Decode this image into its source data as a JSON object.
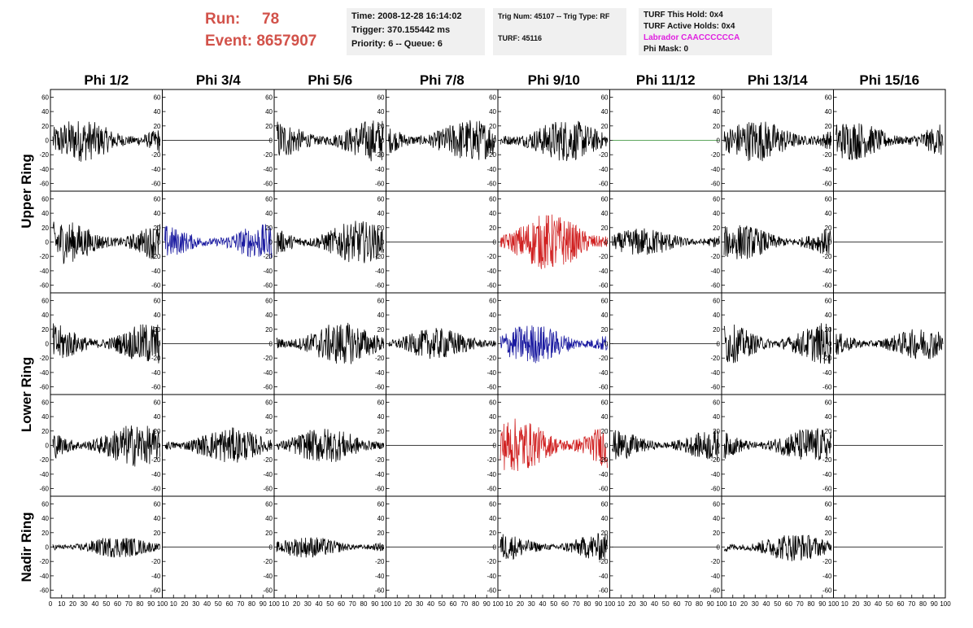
{
  "header": {
    "run_label": "Run:",
    "run_value": "78",
    "event_label": "Event:",
    "event_value": "8657907"
  },
  "info1": {
    "time": "Time: 2008-12-28 16:14:02",
    "trigger": "Trigger: 370.155442 ms",
    "priority": "Priority: 6 -- Queue: 6"
  },
  "info2": {
    "trig": "Trig Num: 45107 -- Trig Type: RF",
    "turf": "TURF: 45116"
  },
  "info3": {
    "this_hold": "TURF This Hold: 0x4",
    "active_holds": "TURF Active Holds: 0x4",
    "labrador": "Labrador CAACCCCCCA",
    "phi_mask": "Phi Mask: 0"
  },
  "colors": {
    "red": "#d2524a",
    "magenta": "#e020e0",
    "panel_bg": "#f0f0f0"
  },
  "chart_data": {
    "type": "line",
    "columns": [
      "Phi 1/2",
      "Phi 3/4",
      "Phi 5/6",
      "Phi 7/8",
      "Phi 9/10",
      "Phi 11/12",
      "Phi 13/14",
      "Phi 15/16"
    ],
    "row_groups": [
      {
        "label": "Upper Ring",
        "rows": [
          0,
          1
        ]
      },
      {
        "label": "Lower Ring",
        "rows": [
          2,
          3
        ]
      },
      {
        "label": "Nadir Ring",
        "rows": [
          4
        ]
      }
    ],
    "xlim": [
      0,
      100
    ],
    "ylim": [
      -65,
      65
    ],
    "xticks": [
      "0",
      "10",
      "20",
      "30",
      "40",
      "50",
      "60",
      "70",
      "80",
      "90",
      "100"
    ],
    "yticks": [
      "60",
      "40",
      "20",
      "0",
      "-20",
      "-40",
      "-60"
    ],
    "channels": [
      [
        "black:30",
        "flat:black",
        "black:30",
        "black:30",
        "black:30",
        "flat:green",
        "black:30",
        "black:28"
      ],
      [
        "black:30",
        "blue:25",
        "black:30",
        "flat:black",
        "red:40",
        "black:20",
        "black:25",
        "flat:black"
      ],
      [
        "black:30",
        "flat:black",
        "black:30",
        "black:22",
        "blue:28",
        "flat:black",
        "black:30",
        "black:22"
      ],
      [
        "black:30",
        "black:25",
        "black:25",
        "flat:black",
        "red:38",
        "black:22",
        "black:25",
        "flat:black"
      ],
      [
        "black:15",
        "flat:black",
        "black:15",
        "flat:black",
        "black:20",
        "flat:black",
        "black:20",
        "flat:black"
      ]
    ],
    "series_colors": {
      "black": "#000000",
      "blue": "#1a1aa0",
      "red": "#d02020",
      "green": "#2a8a2a"
    }
  }
}
